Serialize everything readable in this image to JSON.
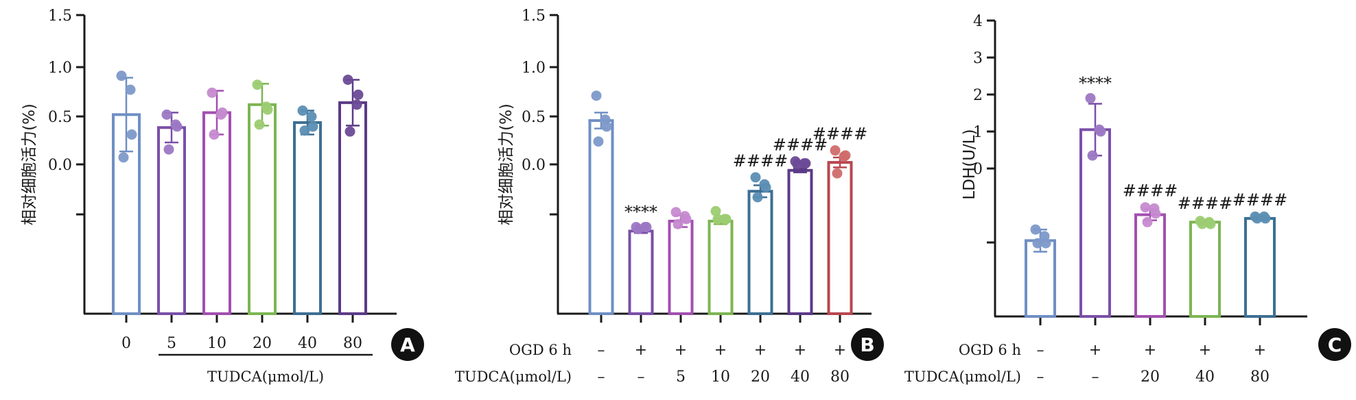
{
  "chart_data": [
    {
      "panel": "A",
      "type": "bar",
      "ylabel": "相对细胞活力(%)",
      "y_tick_labels": [
        "1.5",
        "1.0",
        "0.5",
        "0.0",
        ""
      ],
      "categories": [
        "0",
        "5",
        "10",
        "20",
        "40",
        "80"
      ],
      "xgroup_label": "TUDCA(μmol/L)",
      "means": [
        0.5,
        0.37,
        0.52,
        0.6,
        0.42,
        0.62
      ],
      "errors": [
        0.37,
        0.15,
        0.22,
        0.21,
        0.12,
        0.23
      ],
      "points": [
        [
          0.89,
          0.75,
          0.3,
          0.07
        ],
        [
          0.5,
          0.4,
          0.38,
          0.15
        ],
        [
          0.72,
          0.5,
          0.52,
          0.3
        ],
        [
          0.8,
          0.58,
          0.55,
          0.4
        ],
        [
          0.54,
          0.48,
          0.38,
          0.34
        ],
        [
          0.85,
          0.6,
          0.7,
          0.33
        ]
      ],
      "colors": [
        "#6f8fc4",
        "#7a4fa8",
        "#a24fb0",
        "#7cb552",
        "#3d6f93",
        "#5b3a87"
      ],
      "point_colors": [
        "#7d99c9",
        "#9c78c4",
        "#c68ad0",
        "#9dcc72",
        "#5b8eb3",
        "#6b4a96"
      ],
      "badge": "A"
    },
    {
      "panel": "B",
      "type": "bar",
      "ylabel": "相对细胞活力(%)",
      "y_tick_labels": [
        "1.5",
        "1.0",
        "0.5",
        "0.0",
        ""
      ],
      "row_labels": [
        "OGD 6 h",
        "TUDCA(μmol/L)"
      ],
      "ogd_row": [
        "–",
        "+",
        "+",
        "+",
        "+",
        "+",
        "+"
      ],
      "tudca_row": [
        "–",
        "–",
        "5",
        "10",
        "20",
        "40",
        "80"
      ],
      "means": [
        0.44,
        -0.67,
        -0.57,
        -0.57,
        -0.27,
        -0.06,
        0.02
      ],
      "errors": [
        0.08,
        0.02,
        0.06,
        0.03,
        0.06,
        0.02,
        0.05
      ],
      "points": [
        [
          0.69,
          0.45,
          0.38,
          0.23
        ],
        [
          -0.63,
          -0.63,
          -0.63,
          -0.65
        ],
        [
          -0.48,
          -0.52,
          -0.55,
          -0.6
        ],
        [
          -0.47,
          -0.55,
          -0.55,
          -0.55
        ],
        [
          -0.13,
          -0.2,
          -0.23,
          -0.33
        ],
        [
          0.03,
          0.01,
          0.01,
          0.0
        ],
        [
          0.14,
          0.08,
          0.09,
          -0.09
        ]
      ],
      "colors": [
        "#6f8fc4",
        "#7a4fa8",
        "#a24fb0",
        "#7cb552",
        "#3d6f93",
        "#5b3a87",
        "#b8474f"
      ],
      "point_colors": [
        "#7d99c9",
        "#9c78c4",
        "#c68ad0",
        "#9dcc72",
        "#5b8eb3",
        "#6b4a96",
        "#d06b6b"
      ],
      "annotations": [
        "",
        "****",
        "",
        "",
        "####",
        "####",
        "####"
      ],
      "badge": "B"
    },
    {
      "panel": "C",
      "type": "bar",
      "ylabel": "LDH(U/L)",
      "y_tick_labels": [
        "4",
        "3",
        "2",
        "1",
        "0",
        ""
      ],
      "row_labels": [
        "OGD 6 h",
        "TUDCA(μmol/L)"
      ],
      "ogd_row": [
        "–",
        "+",
        "+",
        "+",
        "+"
      ],
      "tudca_row": [
        "–",
        "–",
        "20",
        "40",
        "80"
      ],
      "means": [
        -1.95,
        1.05,
        -1.25,
        -1.45,
        -1.35
      ],
      "errors": [
        0.3,
        0.7,
        0.15,
        0.06,
        0.04
      ],
      "points": [
        [
          -1.65,
          -1.83,
          -2.02,
          -2.02
        ],
        [
          1.9,
          1.05,
          1.0,
          0.35
        ],
        [
          -1.05,
          -1.08,
          -1.22,
          -1.45
        ],
        [
          -1.42,
          -1.45,
          -1.5,
          -1.5
        ],
        [
          -1.3,
          -1.3,
          -1.35,
          -1.35
        ]
      ],
      "colors": [
        "#6f8fc4",
        "#7a4fa8",
        "#a24fb0",
        "#7cb552",
        "#3d6f93"
      ],
      "point_colors": [
        "#7d99c9",
        "#9c78c4",
        "#c68ad0",
        "#9dcc72",
        "#5b8eb3"
      ],
      "annotations": [
        "",
        "****",
        "####",
        "####",
        "####"
      ],
      "badge": "C"
    }
  ]
}
